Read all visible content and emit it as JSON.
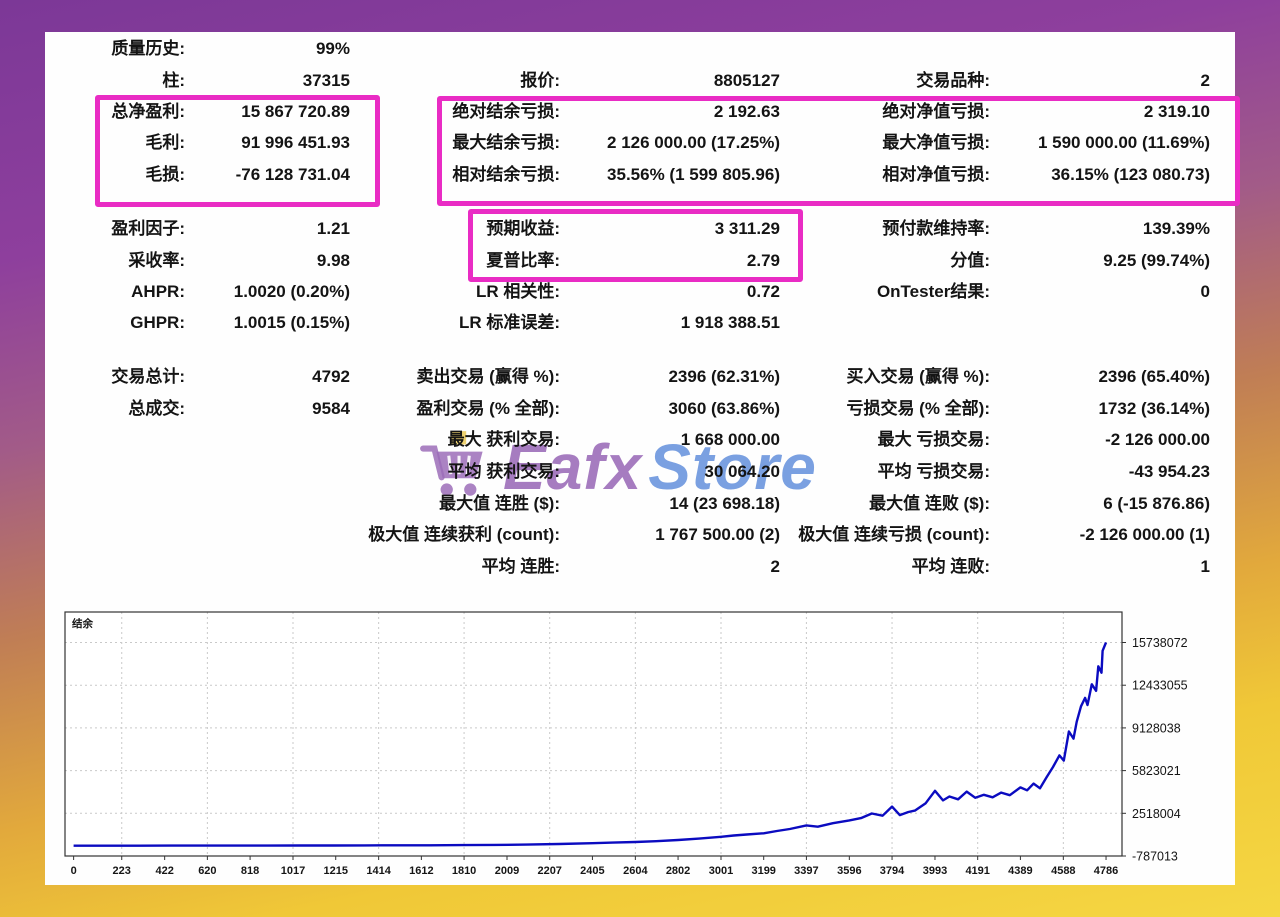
{
  "report": {
    "series_label": "结余",
    "stats": {
      "left": [
        {
          "label": "质量历史:",
          "value": "99%",
          "row": 0
        },
        {
          "label": "柱:",
          "value": "37315",
          "row": 1
        },
        {
          "label": "总净盈利:",
          "value": "15 867 720.89",
          "row": 2
        },
        {
          "label": "毛利:",
          "value": "91 996 451.93",
          "row": 3
        },
        {
          "label": "毛损:",
          "value": "-76 128 731.04",
          "row": 4
        },
        {
          "label": "盈利因子:",
          "value": "1.21",
          "row": 5
        },
        {
          "label": "采收率:",
          "value": "9.98",
          "row": 6
        },
        {
          "label": "AHPR:",
          "value": "1.0020 (0.20%)",
          "row": 7
        },
        {
          "label": "GHPR:",
          "value": "1.0015 (0.15%)",
          "row": 8
        },
        {
          "label": "交易总计:",
          "value": "4792",
          "row": 9
        },
        {
          "label": "总成交:",
          "value": "9584",
          "row": 10
        }
      ],
      "middle": [
        {
          "label": "报价:",
          "value": "8805127",
          "row": 1
        },
        {
          "label": "绝对结余亏损:",
          "value": "2 192.63",
          "row": 2
        },
        {
          "label": "最大结余亏损:",
          "value": "2 126 000.00 (17.25%)",
          "row": 3
        },
        {
          "label": "相对结余亏损:",
          "value": "35.56% (1 599 805.96)",
          "row": 4
        },
        {
          "label": "预期收益:",
          "value": "3 311.29",
          "row": 5
        },
        {
          "label": "夏普比率:",
          "value": "2.79",
          "row": 6
        },
        {
          "label": "LR 相关性:",
          "value": "0.72",
          "row": 7
        },
        {
          "label": "LR 标准误差:",
          "value": "1 918 388.51",
          "row": 8
        },
        {
          "label": "卖出交易 (赢得 %):",
          "value": "2396 (62.31%)",
          "row": 9
        },
        {
          "label": "盈利交易 (% 全部):",
          "value": "3060 (63.86%)",
          "row": 10
        },
        {
          "label": "最大 获利交易:",
          "value": "1 668 000.00",
          "row": 11
        },
        {
          "label": "平均 获利交易:",
          "value": "30 064.20",
          "row": 12
        },
        {
          "label": "最大值 连胜 ($):",
          "value": "14 (23 698.18)",
          "row": 13
        },
        {
          "label": "极大值 连续获利 (count):",
          "value": "1 767 500.00 (2)",
          "row": 14
        },
        {
          "label": "平均 连胜:",
          "value": "2",
          "row": 15
        }
      ],
      "right": [
        {
          "label": "交易品种:",
          "value": "2",
          "row": 1
        },
        {
          "label": "绝对净值亏损:",
          "value": "2 319.10",
          "row": 2
        },
        {
          "label": "最大净值亏损:",
          "value": "1 590 000.00 (11.69%)",
          "row": 3
        },
        {
          "label": "相对净值亏损:",
          "value": "36.15% (123 080.73)",
          "row": 4
        },
        {
          "label": "预付款维持率:",
          "value": "139.39%",
          "row": 5
        },
        {
          "label": "分值:",
          "value": "9.25 (99.74%)",
          "row": 6
        },
        {
          "label": "OnTester结果:",
          "value": "0",
          "row": 7
        },
        {
          "label": "买入交易 (赢得 %):",
          "value": "2396 (65.40%)",
          "row": 9
        },
        {
          "label": "亏损交易 (% 全部):",
          "value": "1732 (36.14%)",
          "row": 10
        },
        {
          "label": "最大 亏损交易:",
          "value": "-2 126 000.00",
          "row": 11
        },
        {
          "label": "平均 亏损交易:",
          "value": "-43 954.23",
          "row": 12
        },
        {
          "label": "最大值 连败 ($):",
          "value": "6 (-15 876.86)",
          "row": 13
        },
        {
          "label": "极大值 连续亏损 (count):",
          "value": "-2 126 000.00 (1)",
          "row": 14
        },
        {
          "label": "平均 连败:",
          "value": "1",
          "row": 15
        }
      ]
    }
  },
  "watermark": {
    "icon": "shopping-cart",
    "text_primary": "Eafx",
    "text_secondary": "Store",
    "primary_color": "#8449a8",
    "secondary_color": "#467cd6"
  },
  "highlight_color": "#e92cc4",
  "chart_data": {
    "type": "line",
    "title": "结余",
    "legend": [
      "结余"
    ],
    "line_color": "#0b0bc0",
    "grid": true,
    "xlim": [
      -40,
      4860
    ],
    "ylim": [
      -787013,
      18100000
    ],
    "x_ticks": [
      0,
      223,
      422,
      620,
      818,
      1017,
      1215,
      1414,
      1612,
      1810,
      2009,
      2207,
      2405,
      2604,
      2802,
      3001,
      3199,
      3397,
      3596,
      3794,
      3993,
      4191,
      4389,
      4588,
      4786
    ],
    "y_ticks": [
      15738072,
      12433055,
      9128038,
      5823021,
      2518004,
      -787013
    ],
    "x": [
      0,
      150,
      300,
      450,
      600,
      750,
      900,
      1050,
      1200,
      1350,
      1500,
      1650,
      1800,
      1950,
      2100,
      2250,
      2405,
      2500,
      2604,
      2700,
      2802,
      2900,
      3001,
      3060,
      3120,
      3199,
      3260,
      3320,
      3397,
      3450,
      3520,
      3596,
      3650,
      3700,
      3750,
      3794,
      3830,
      3870,
      3900,
      3950,
      3993,
      4030,
      4060,
      4100,
      4140,
      4180,
      4220,
      4260,
      4300,
      4340,
      4389,
      4420,
      4450,
      4480,
      4510,
      4540,
      4570,
      4590,
      4614,
      4635,
      4650,
      4670,
      4689,
      4700,
      4720,
      4740,
      4750,
      4765,
      4770,
      4786
    ],
    "y": [
      10000,
      11000,
      13000,
      15000,
      16000,
      18000,
      21000,
      24000,
      28000,
      32000,
      38000,
      45000,
      55000,
      70000,
      95000,
      140000,
      200000,
      250000,
      300000,
      360000,
      450000,
      560000,
      700000,
      800000,
      880000,
      970000,
      1150000,
      1300000,
      1580000,
      1480000,
      1750000,
      1970000,
      2150000,
      2500000,
      2330000,
      3040000,
      2380000,
      2620000,
      2730000,
      3300000,
      4260000,
      3520000,
      3820000,
      3600000,
      4200000,
      3720000,
      3950000,
      3760000,
      4120000,
      3920000,
      4520000,
      4300000,
      4820000,
      4450000,
      5300000,
      6100000,
      7000000,
      6600000,
      8850000,
      8300000,
      9600000,
      10800000,
      11450000,
      10900000,
      12500000,
      12000000,
      13900000,
      13400000,
      15100000,
      15738072
    ]
  }
}
